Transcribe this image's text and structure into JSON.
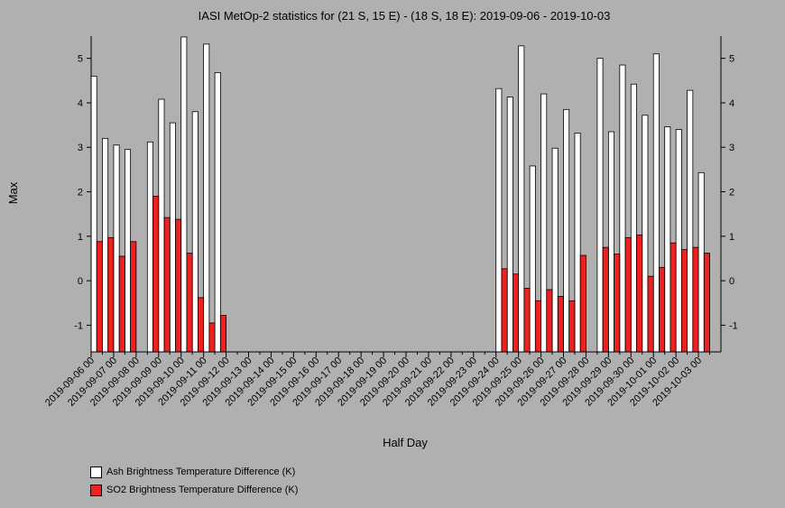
{
  "chart_data": {
    "type": "bar",
    "title": "IASI MetOp-2 statistics for (21 S, 15 E) - (18 S, 18 E): 2019-09-06 - 2019-10-03",
    "xlabel": "Half Day",
    "ylabel": "Max",
    "ylim": [
      -1.6,
      5.5
    ],
    "yticks": [
      -1,
      0,
      1,
      2,
      3,
      4,
      5
    ],
    "categories": [
      "2019-09-06 00",
      "2019-09-06 12",
      "2019-09-07 00",
      "2019-09-07 12",
      "2019-09-08 00",
      "2019-09-08 12",
      "2019-09-09 00",
      "2019-09-09 12",
      "2019-09-10 00",
      "2019-09-10 12",
      "2019-09-11 00",
      "2019-09-11 12",
      "2019-09-12 00",
      "2019-09-12 12",
      "2019-09-13 00",
      "2019-09-13 12",
      "2019-09-14 00",
      "2019-09-14 12",
      "2019-09-15 00",
      "2019-09-15 12",
      "2019-09-16 00",
      "2019-09-16 12",
      "2019-09-17 00",
      "2019-09-17 12",
      "2019-09-18 00",
      "2019-09-18 12",
      "2019-09-19 00",
      "2019-09-19 12",
      "2019-09-20 00",
      "2019-09-20 12",
      "2019-09-21 00",
      "2019-09-21 12",
      "2019-09-22 00",
      "2019-09-22 12",
      "2019-09-23 00",
      "2019-09-23 12",
      "2019-09-24 00",
      "2019-09-24 12",
      "2019-09-25 00",
      "2019-09-25 12",
      "2019-09-26 00",
      "2019-09-26 12",
      "2019-09-27 00",
      "2019-09-27 12",
      "2019-09-28 00",
      "2019-09-28 12",
      "2019-09-29 00",
      "2019-09-29 12",
      "2019-09-30 00",
      "2019-09-30 12",
      "2019-10-01 00",
      "2019-10-01 12",
      "2019-10-02 00",
      "2019-10-02 12",
      "2019-10-03 00",
      "2019-10-03 12"
    ],
    "tick_labels": [
      "2019-09-06 00",
      "2019-09-07 00",
      "2019-09-08 00",
      "2019-09-09 00",
      "2019-09-10 00",
      "2019-09-11 00",
      "2019-09-12 00",
      "2019-09-13 00",
      "2019-09-14 00",
      "2019-09-15 00",
      "2019-09-16 00",
      "2019-09-17 00",
      "2019-09-18 00",
      "2019-09-19 00",
      "2019-09-20 00",
      "2019-09-21 00",
      "2019-09-22 00",
      "2019-09-23 00",
      "2019-09-24 00",
      "2019-09-25 00",
      "2019-09-26 00",
      "2019-09-27 00",
      "2019-09-28 00",
      "2019-09-29 00",
      "2019-09-30 00",
      "2019-10-01 00",
      "2019-10-02 00",
      "2019-10-03 00"
    ],
    "series": [
      {
        "name": "Ash Brightness Temperature Difference (K)",
        "color": "#ffffff",
        "values": [
          4.6,
          3.2,
          3.05,
          2.95,
          null,
          3.12,
          4.08,
          3.55,
          5.48,
          3.8,
          5.32,
          4.68,
          null,
          null,
          null,
          null,
          null,
          null,
          null,
          null,
          null,
          null,
          null,
          null,
          null,
          null,
          null,
          null,
          null,
          null,
          null,
          null,
          null,
          null,
          null,
          null,
          4.32,
          4.13,
          5.28,
          2.58,
          4.2,
          2.98,
          3.85,
          3.32,
          null,
          5.0,
          3.35,
          4.85,
          4.42,
          3.72,
          5.1,
          3.46,
          3.4,
          4.28,
          2.43,
          null
        ]
      },
      {
        "name": "SO2 Brightness Temperature Difference (K)",
        "color": "#ee2020",
        "values": [
          0.88,
          0.97,
          0.55,
          0.88,
          null,
          1.9,
          1.42,
          1.38,
          0.62,
          -0.38,
          -0.95,
          -0.78,
          null,
          null,
          null,
          null,
          null,
          null,
          null,
          null,
          null,
          null,
          null,
          null,
          null,
          null,
          null,
          null,
          null,
          null,
          null,
          null,
          null,
          null,
          null,
          null,
          0.27,
          0.15,
          -0.17,
          -0.45,
          -0.2,
          -0.35,
          -0.45,
          0.57,
          null,
          0.75,
          0.6,
          0.97,
          1.03,
          0.1,
          0.3,
          0.85,
          0.7,
          0.75,
          0.62,
          null
        ]
      }
    ],
    "legend_position": "bottom-left",
    "grid": false
  }
}
